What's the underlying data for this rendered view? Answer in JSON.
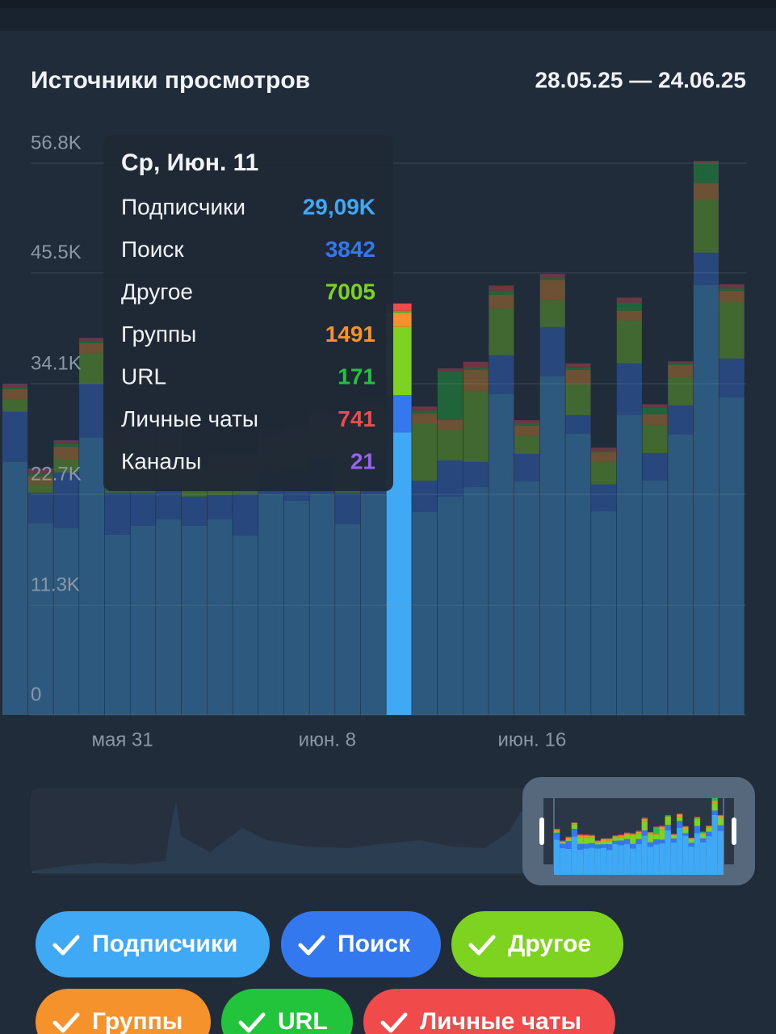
{
  "title": "Источники просмотров",
  "date_range": "28.05.25 — 24.06.25",
  "chart_data": {
    "type": "stacked_bar",
    "categories": [
      null,
      null,
      null,
      null,
      "мая 31",
      null,
      null,
      null,
      null,
      null,
      null,
      null,
      "июн. 8",
      null,
      null,
      null,
      null,
      null,
      null,
      null,
      "июн. 16",
      null,
      null,
      null,
      null,
      null,
      null,
      null,
      null
    ],
    "ylim": [
      0,
      56800
    ],
    "yticks": [
      0,
      {
        "value": 11300,
        "label": "11.3K"
      },
      {
        "value": 22700,
        "label": "22.7K"
      },
      {
        "value": 34100,
        "label": "34.1K"
      },
      {
        "value": 45500,
        "label": "45.5K"
      },
      {
        "value": 56800,
        "label": "56.8K"
      }
    ],
    "grid": true,
    "tooltip": {
      "title": "Ср, Июн. 11"
    },
    "series": [
      {
        "name": "Подписчики",
        "color": "#3fa9f5",
        "values": [
          26040,
          19720,
          19220,
          28540,
          18550,
          19470,
          20130,
          19470,
          20130,
          18470,
          22710,
          22050,
          22710,
          19640,
          22710,
          29090,
          20880,
          22460,
          23460,
          33030,
          24040,
          34860,
          28950,
          20970,
          30870,
          24130,
          28870,
          44260,
          32700
        ],
        "value_labels": [
          null,
          null,
          null,
          null,
          null,
          null,
          null,
          null,
          null,
          null,
          null,
          null,
          null,
          null,
          null,
          "29,09K",
          null,
          null,
          null,
          null,
          null,
          null,
          null,
          null,
          null,
          null,
          null,
          null,
          null
        ]
      },
      {
        "name": "Поиск",
        "color": "#3478f0",
        "values": [
          5160,
          3160,
          5740,
          5570,
          4330,
          3410,
          3330,
          3000,
          2500,
          4240,
          2500,
          3330,
          3740,
          3240,
          3740,
          3842,
          3240,
          3740,
          2580,
          3990,
          2830,
          5080,
          1910,
          2750,
          5320,
          2830,
          3000,
          3330,
          3990
        ]
      },
      {
        "name": "Другое",
        "color": "#7ed321",
        "values": [
          1250,
          830,
          1410,
          3160,
          4990,
          4990,
          4160,
          1660,
          2500,
          2500,
          2080,
          2500,
          2910,
          5820,
          4160,
          7005,
          5820,
          3160,
          7240,
          4830,
          1830,
          2750,
          3160,
          2330,
          4410,
          2910,
          2910,
          5410,
          5820
        ]
      },
      {
        "name": "Группы",
        "color": "#f5922b",
        "values": [
          1080,
          830,
          1250,
          1000,
          1250,
          1250,
          1250,
          830,
          1250,
          1250,
          1250,
          1250,
          1250,
          1250,
          1250,
          1491,
          1080,
          1000,
          2250,
          1410,
          1080,
          2080,
          1500,
          1000,
          1000,
          1080,
          1250,
          1750,
          1160
        ]
      },
      {
        "name": "URL",
        "color": "#22c43c",
        "values": [
          200,
          300,
          250,
          200,
          300,
          300,
          300,
          200,
          200,
          250,
          250,
          250,
          250,
          300,
          300,
          171,
          300,
          4990,
          200,
          400,
          200,
          200,
          250,
          150,
          830,
          670,
          150,
          2080,
          250
        ]
      },
      {
        "name": "Личные чаты",
        "color": "#f04a4a",
        "values": [
          300,
          400,
          350,
          300,
          500,
          400,
          400,
          300,
          400,
          400,
          400,
          400,
          400,
          500,
          500,
          741,
          400,
          300,
          600,
          500,
          350,
          400,
          400,
          300,
          500,
          350,
          200,
          200,
          400
        ]
      },
      {
        "name": "Каналы",
        "color": "#9a62f0",
        "values": [
          80,
          130,
          60,
          50,
          50,
          50,
          50,
          40,
          40,
          40,
          40,
          40,
          40,
          40,
          40,
          21,
          30,
          20,
          30,
          40,
          20,
          30,
          20,
          20,
          30,
          20,
          20,
          20,
          20
        ]
      }
    ]
  }
}
